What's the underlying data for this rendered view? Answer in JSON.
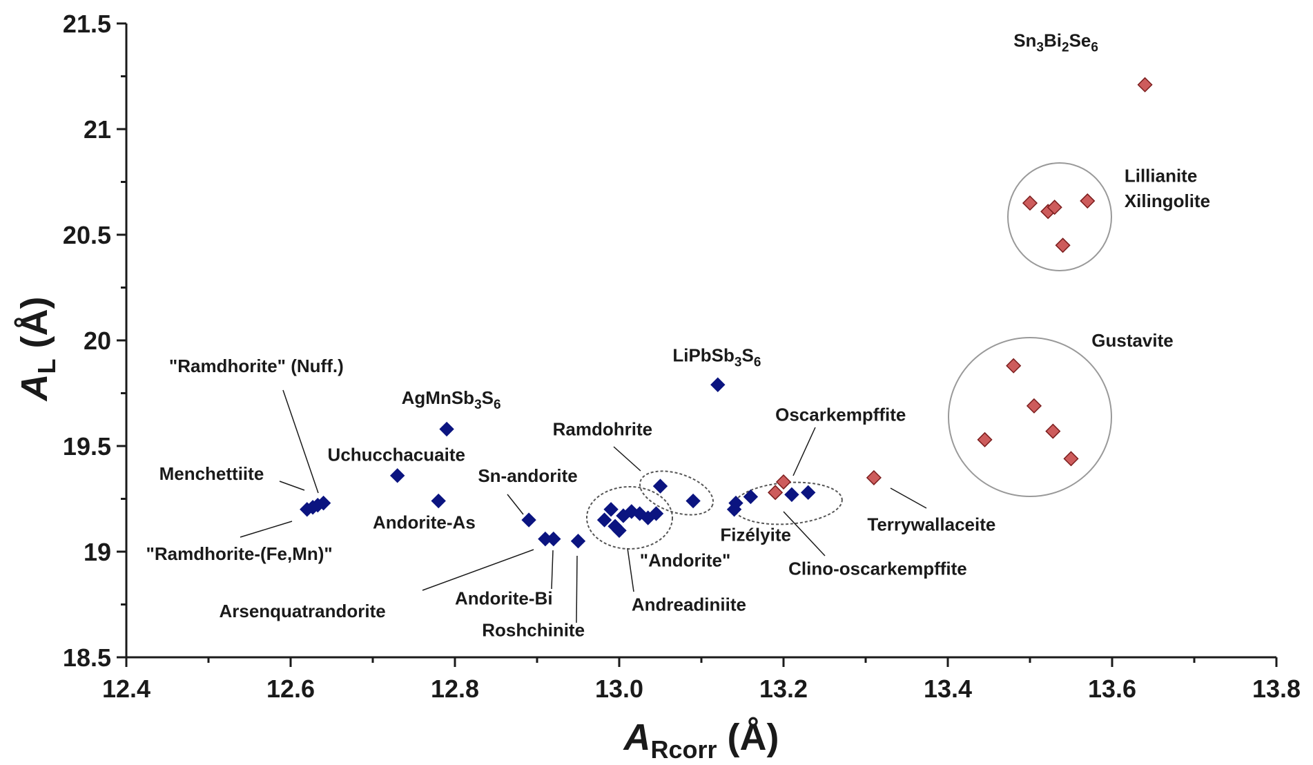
{
  "chart_data": {
    "type": "scatter",
    "xlim": [
      12.4,
      13.8
    ],
    "ylim": [
      18.5,
      21.5
    ],
    "xticks": [
      "12.4",
      "12.6",
      "12.8",
      "13.0",
      "13.2",
      "13.4",
      "13.6",
      "13.8"
    ],
    "yticks": [
      "18.5",
      "19",
      "19.5",
      "20",
      "20.5",
      "21",
      "21.5"
    ],
    "xlabel": {
      "main": "A",
      "sub": "Rcorr",
      "rest": " (Å)"
    },
    "ylabel": {
      "main": "A",
      "sub": "L",
      "rest": " (Å)"
    },
    "grid": false,
    "colors": {
      "series_blue": "#0b1480",
      "series_red": "#cd5c5c",
      "red_edge": "#7a1c1c"
    },
    "series": [
      {
        "color_key": "series_blue",
        "points": [
          {
            "x": 12.62,
            "y": 19.2
          },
          {
            "x": 12.627,
            "y": 19.21
          },
          {
            "x": 12.633,
            "y": 19.22
          },
          {
            "x": 12.64,
            "y": 19.23
          },
          {
            "x": 12.73,
            "y": 19.36
          },
          {
            "x": 12.78,
            "y": 19.24
          },
          {
            "x": 12.79,
            "y": 19.58
          },
          {
            "x": 12.89,
            "y": 19.15
          },
          {
            "x": 12.91,
            "y": 19.06
          },
          {
            "x": 12.92,
            "y": 19.06
          },
          {
            "x": 12.95,
            "y": 19.05
          },
          {
            "x": 12.982,
            "y": 19.15
          },
          {
            "x": 12.99,
            "y": 19.2
          },
          {
            "x": 12.995,
            "y": 19.12
          },
          {
            "x": 13.0,
            "y": 19.1
          },
          {
            "x": 13.005,
            "y": 19.17
          },
          {
            "x": 13.015,
            "y": 19.19
          },
          {
            "x": 13.025,
            "y": 19.18
          },
          {
            "x": 13.035,
            "y": 19.16
          },
          {
            "x": 13.045,
            "y": 19.18
          },
          {
            "x": 13.05,
            "y": 19.31
          },
          {
            "x": 13.09,
            "y": 19.24
          },
          {
            "x": 13.12,
            "y": 19.79
          },
          {
            "x": 13.14,
            "y": 19.2
          },
          {
            "x": 13.142,
            "y": 19.23
          },
          {
            "x": 13.16,
            "y": 19.26
          },
          {
            "x": 13.21,
            "y": 19.27
          },
          {
            "x": 13.23,
            "y": 19.28
          }
        ]
      },
      {
        "color_key": "series_red",
        "points": [
          {
            "x": 13.19,
            "y": 19.28
          },
          {
            "x": 13.2,
            "y": 19.33
          },
          {
            "x": 13.31,
            "y": 19.35
          },
          {
            "x": 13.445,
            "y": 19.53
          },
          {
            "x": 13.48,
            "y": 19.88
          },
          {
            "x": 13.505,
            "y": 19.69
          },
          {
            "x": 13.528,
            "y": 19.57
          },
          {
            "x": 13.55,
            "y": 19.44
          },
          {
            "x": 13.5,
            "y": 20.65
          },
          {
            "x": 13.522,
            "y": 20.61
          },
          {
            "x": 13.53,
            "y": 20.63
          },
          {
            "x": 13.54,
            "y": 20.45
          },
          {
            "x": 13.57,
            "y": 20.66
          },
          {
            "x": 13.64,
            "y": 21.21
          }
        ]
      }
    ],
    "annotations": [
      {
        "id": "sn3bi2se6",
        "x": 13.48,
        "y": 21.39,
        "anchor": "start",
        "parts": [
          [
            "Sn",
            ""
          ],
          [
            "3",
            "sub"
          ],
          [
            "Bi",
            ""
          ],
          [
            "2",
            "sub"
          ],
          [
            "Se",
            ""
          ],
          [
            "6",
            "sub"
          ]
        ]
      },
      {
        "id": "lillianite",
        "x": 13.615,
        "y": 20.75,
        "anchor": "start",
        "parts": [
          [
            "Lillianite",
            ""
          ]
        ]
      },
      {
        "id": "xilingolite",
        "x": 13.615,
        "y": 20.63,
        "anchor": "start",
        "parts": [
          [
            "Xilingolite",
            ""
          ]
        ]
      },
      {
        "id": "gustavite",
        "x": 13.575,
        "y": 19.97,
        "anchor": "start",
        "parts": [
          [
            "Gustavite",
            ""
          ]
        ]
      },
      {
        "id": "lipbsb3s6",
        "x": 13.065,
        "y": 19.9,
        "anchor": "start",
        "parts": [
          [
            "LiPbSb",
            ""
          ],
          [
            "3",
            "sub"
          ],
          [
            "S",
            ""
          ],
          [
            "6",
            "sub"
          ]
        ]
      },
      {
        "id": "agmnsb3s6",
        "x": 12.735,
        "y": 19.7,
        "anchor": "start",
        "parts": [
          [
            "AgMnSb",
            ""
          ],
          [
            "3",
            "sub"
          ],
          [
            "S",
            ""
          ],
          [
            "6",
            "sub"
          ]
        ]
      },
      {
        "id": "ramdhorite-nuff",
        "x": 12.452,
        "y": 19.85,
        "anchor": "start",
        "parts": [
          [
            "\"Ramdhorite\" (Nuff.)",
            ""
          ]
        ]
      },
      {
        "id": "uchucchacuaite",
        "x": 12.645,
        "y": 19.43,
        "anchor": "start",
        "parts": [
          [
            "Uchucchacuaite",
            ""
          ]
        ]
      },
      {
        "id": "menchettiite",
        "x": 12.44,
        "y": 19.34,
        "anchor": "start",
        "parts": [
          [
            "Menchettiite",
            ""
          ]
        ]
      },
      {
        "id": "sn-andorite",
        "x": 12.828,
        "y": 19.33,
        "anchor": "start",
        "parts": [
          [
            "Sn-andorite",
            ""
          ]
        ]
      },
      {
        "id": "ramdohrite",
        "x": 12.919,
        "y": 19.55,
        "anchor": "start",
        "parts": [
          [
            "Ramdohrite",
            ""
          ]
        ]
      },
      {
        "id": "oscarkempffite",
        "x": 13.19,
        "y": 19.62,
        "anchor": "start",
        "parts": [
          [
            "Oscarkempffite",
            ""
          ]
        ]
      },
      {
        "id": "andorite-as",
        "x": 12.7,
        "y": 19.11,
        "anchor": "start",
        "parts": [
          [
            "Andorite-As",
            ""
          ]
        ]
      },
      {
        "id": "ramdhorite-femn",
        "x": 12.424,
        "y": 18.96,
        "anchor": "start",
        "parts": [
          [
            "\"Ramdhorite-(Fe,Mn)\"",
            ""
          ]
        ]
      },
      {
        "id": "fizelyite",
        "x": 13.123,
        "y": 19.05,
        "anchor": "start",
        "parts": [
          [
            "Fizélyite",
            ""
          ]
        ]
      },
      {
        "id": "terrywallaceite",
        "x": 13.302,
        "y": 19.1,
        "anchor": "start",
        "parts": [
          [
            "Terrywallaceite",
            ""
          ]
        ]
      },
      {
        "id": "andorite",
        "x": 13.025,
        "y": 18.93,
        "anchor": "start",
        "parts": [
          [
            "\"Andorite\"",
            ""
          ]
        ]
      },
      {
        "id": "clino-oscarkempffite",
        "x": 13.206,
        "y": 18.89,
        "anchor": "start",
        "parts": [
          [
            "Clino-oscarkempffite",
            ""
          ]
        ]
      },
      {
        "id": "andorite-bi",
        "x": 12.8,
        "y": 18.75,
        "anchor": "start",
        "parts": [
          [
            "Andorite-Bi",
            ""
          ]
        ]
      },
      {
        "id": "andreadiniite",
        "x": 13.015,
        "y": 18.72,
        "anchor": "start",
        "parts": [
          [
            "Andreadiniite",
            ""
          ]
        ]
      },
      {
        "id": "arsenquatrandorite",
        "x": 12.513,
        "y": 18.69,
        "anchor": "start",
        "parts": [
          [
            "Arsenquatrandorite",
            ""
          ]
        ]
      },
      {
        "id": "roshchinite",
        "x": 12.833,
        "y": 18.6,
        "anchor": "start",
        "parts": [
          [
            "Roshchinite",
            ""
          ]
        ]
      }
    ]
  }
}
